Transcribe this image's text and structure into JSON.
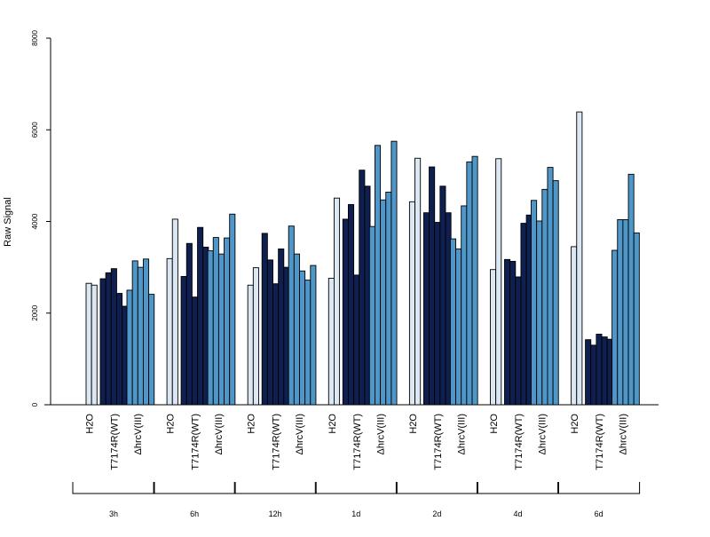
{
  "chart_data": {
    "type": "bar",
    "title": "",
    "xlabel": "",
    "ylabel": "Raw Signal",
    "ylim": [
      0,
      8000
    ],
    "y_ticks": [
      0,
      2000,
      4000,
      6000,
      8000
    ],
    "grid": false,
    "legend": "none",
    "time_points": [
      "3h",
      "6h",
      "12h",
      "1d",
      "2d",
      "4d",
      "6d"
    ],
    "treatments": [
      {
        "name": "H2O",
        "color": "#dbe7f3"
      },
      {
        "name": "T7174R(WT)",
        "color": "#0f1f4f"
      },
      {
        "name": "ΔhrcV(III)",
        "color": "#4f97c8"
      }
    ],
    "values": [
      [
        [
          2650,
          2610
        ],
        [
          2750,
          2880,
          2970,
          2430,
          2150
        ],
        [
          2500,
          3140,
          3000,
          3180,
          2410
        ]
      ],
      [
        [
          3190,
          4050
        ],
        [
          2800,
          3520,
          2350,
          3870,
          3440
        ],
        [
          3360,
          3650,
          3290,
          3640,
          4160
        ]
      ],
      [
        [
          2610,
          2990
        ],
        [
          3740,
          3160,
          2640,
          3400,
          3000
        ],
        [
          3900,
          3290,
          2920,
          2720,
          3040
        ]
      ],
      [
        [
          2760,
          4510
        ],
        [
          4050,
          4370,
          2830,
          5120,
          4770
        ],
        [
          3890,
          5660,
          4470,
          4640,
          5750
        ]
      ],
      [
        [
          4430,
          5380
        ],
        [
          4190,
          5190,
          3980,
          4770,
          4190
        ],
        [
          3620,
          3400,
          4340,
          5300,
          5420
        ]
      ],
      [
        [
          2950,
          5370
        ],
        [
          3170,
          3130,
          2790,
          3960,
          4140
        ],
        [
          4460,
          4010,
          4700,
          5180,
          4890
        ]
      ],
      [
        [
          3450,
          6390
        ],
        [
          1420,
          1300,
          1540,
          1480,
          1430
        ],
        [
          3370,
          4040,
          4040,
          5030,
          3750
        ]
      ]
    ]
  }
}
